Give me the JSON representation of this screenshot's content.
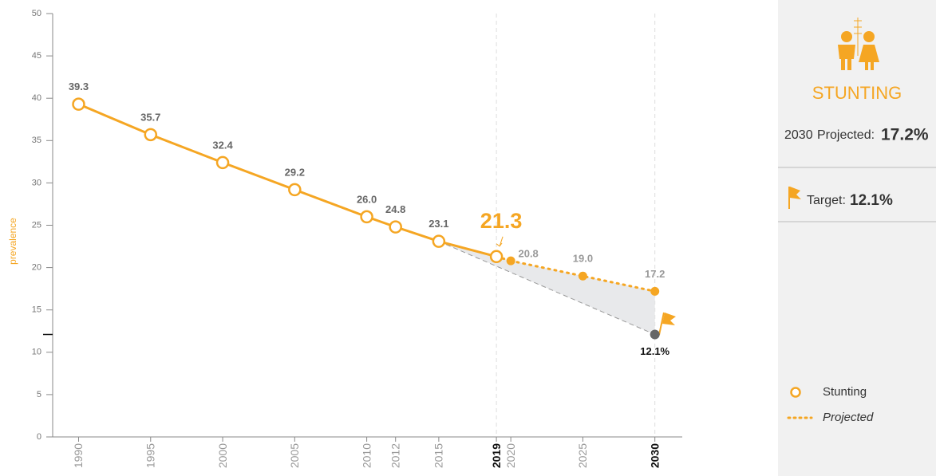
{
  "chart_data": {
    "type": "line",
    "y_label": "prevalence",
    "xlim": [
      1988.2,
      2031.9
    ],
    "ylim": [
      0,
      50
    ],
    "yticks": [
      0,
      5,
      10,
      15,
      20,
      25,
      30,
      35,
      40,
      45,
      50
    ],
    "xticks": [
      1990,
      1995,
      2000,
      2005,
      2010,
      2012,
      2015,
      2019,
      2020,
      2025,
      2030
    ],
    "highlight_xticks": [
      2019,
      2030
    ],
    "color": "#f5a623",
    "series": [
      {
        "name": "Stunting",
        "color": "#f5a623",
        "style": "solid",
        "x": [
          1990,
          1995,
          2000,
          2005,
          2010,
          2012,
          2015,
          2019
        ],
        "values": [
          39.3,
          35.7,
          32.4,
          29.2,
          26.0,
          24.8,
          23.1,
          21.3
        ],
        "value_labels": [
          "39.3",
          "35.7",
          "32.4",
          "29.2",
          "26.0",
          "24.8",
          "23.1",
          "21.3"
        ]
      },
      {
        "name": "Projected",
        "color": "#f5a623",
        "style": "dotted",
        "x": [
          2020,
          2025,
          2030
        ],
        "values": [
          20.8,
          19.0,
          17.2
        ],
        "value_labels": [
          "20.8",
          "19.0",
          "17.2"
        ]
      }
    ],
    "target": {
      "start_x": 2015,
      "x": 2030,
      "value": 12.1,
      "value_label": "12.1%",
      "color": "#666666"
    }
  },
  "panel": {
    "title": "STUNTING",
    "projected_year": "2030",
    "projected_label": "Projected:",
    "projected_value": "17.2%",
    "target_label": "Target:",
    "target_value": "12.1%"
  }
}
